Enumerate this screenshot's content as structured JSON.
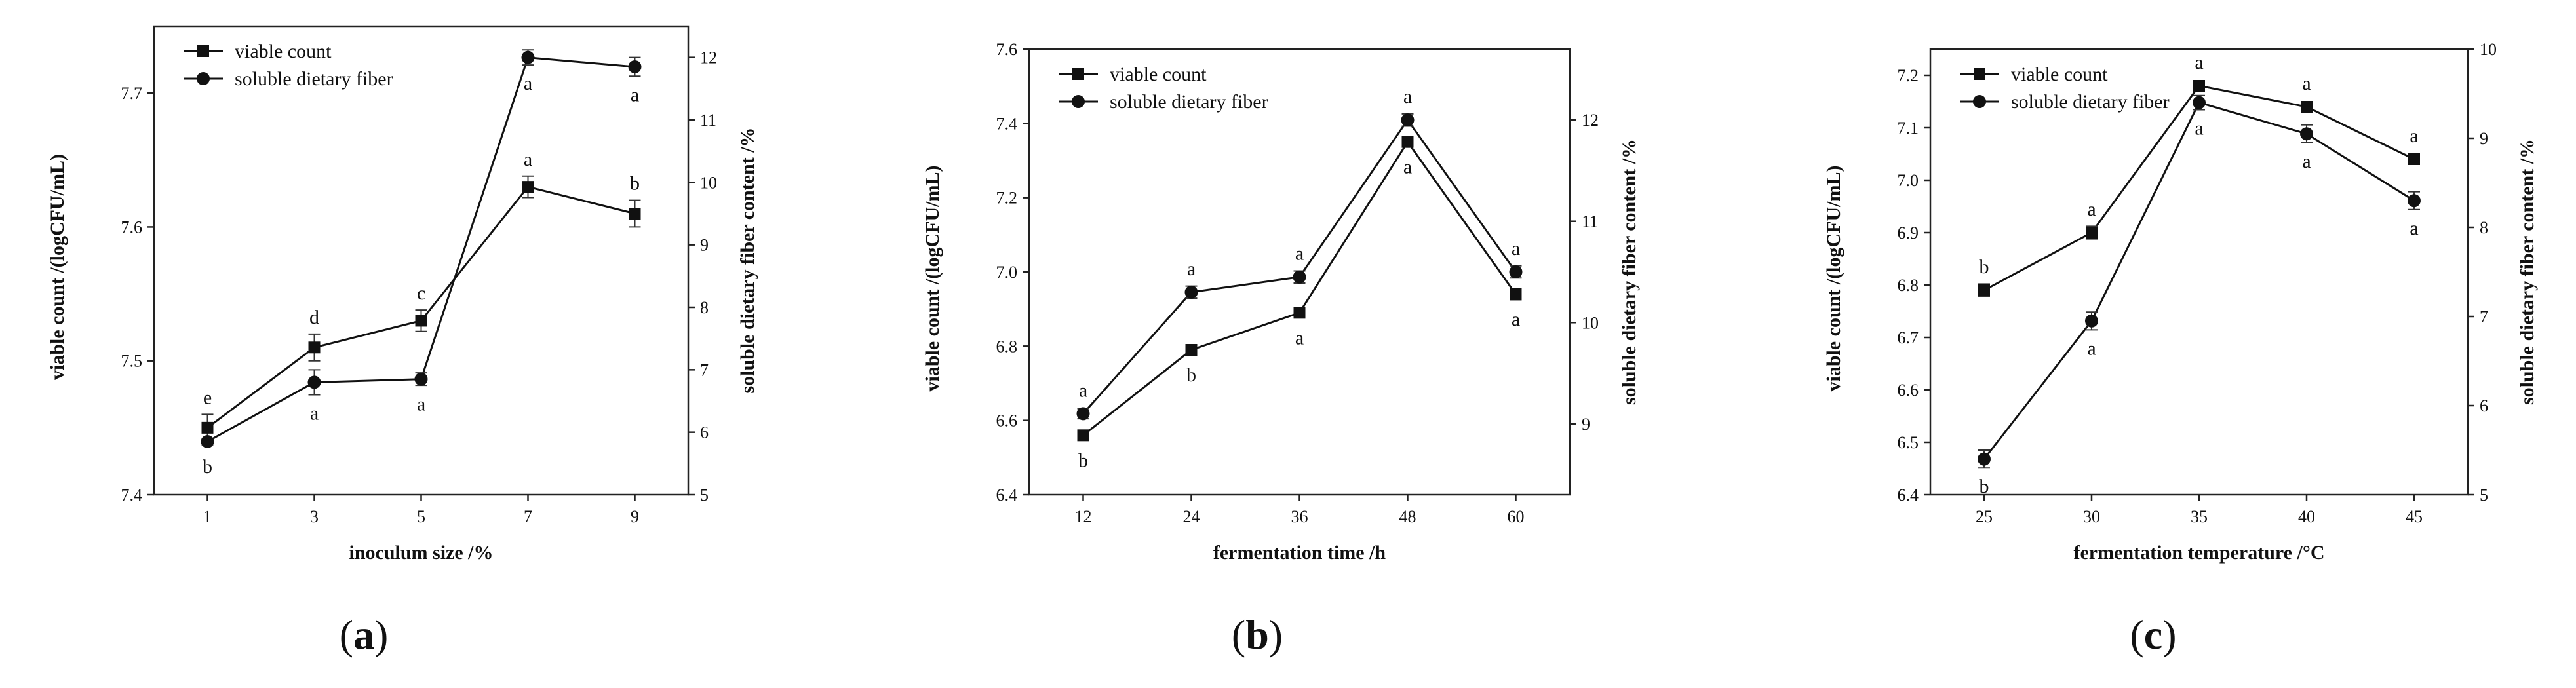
{
  "chart_data": [
    {
      "type": "line",
      "panel_label": "a",
      "xlabel": "inoculum size /%",
      "ylabel_left": "viable count /(logCFU/mL)",
      "ylabel_right": "soluble dietary fiber content /%",
      "x": [
        1,
        3,
        5,
        7,
        9
      ],
      "xlim": [
        0,
        10
      ],
      "ylim_left": [
        7.4,
        7.75
      ],
      "yticks_left": [
        7.4,
        7.5,
        7.6,
        7.7
      ],
      "ylim_right": [
        5,
        12.5
      ],
      "yticks_right": [
        5,
        6,
        7,
        8,
        9,
        10,
        11,
        12
      ],
      "legend_position": "top-left",
      "series": [
        {
          "name": "viable count",
          "axis": "left",
          "marker": "square",
          "values": [
            7.45,
            7.51,
            7.53,
            7.63,
            7.61
          ],
          "errors": [
            0.01,
            0.01,
            0.008,
            0.008,
            0.01
          ],
          "letters": [
            "e",
            "d",
            "c",
            "a",
            "b"
          ],
          "letter_side": [
            "above",
            "above",
            "above",
            "above",
            "above"
          ]
        },
        {
          "name": "soluble dietary fiber",
          "axis": "right",
          "marker": "circle",
          "values": [
            5.85,
            6.8,
            6.85,
            12.0,
            11.85
          ],
          "errors": [
            0.05,
            0.2,
            0.1,
            0.12,
            0.15
          ],
          "letters": [
            "b",
            "a",
            "a",
            "a",
            "a"
          ],
          "letter_side": [
            "below",
            "below",
            "below",
            "below",
            "below"
          ]
        }
      ]
    },
    {
      "type": "line",
      "panel_label": "b",
      "xlabel": "fermentation time /h",
      "ylabel_left": "viable count /(logCFU/mL)",
      "ylabel_right": "soluble dietary fiber content /%",
      "x": [
        12,
        24,
        36,
        48,
        60
      ],
      "xlim": [
        6,
        66
      ],
      "ylim_left": [
        6.4,
        7.6
      ],
      "yticks_left": [
        6.4,
        6.6,
        6.8,
        7.0,
        7.2,
        7.4,
        7.6
      ],
      "ylim_right": [
        8.3,
        12.7
      ],
      "yticks_right": [
        9,
        10,
        11,
        12
      ],
      "legend_position": "top-left",
      "series": [
        {
          "name": "viable count",
          "axis": "left",
          "marker": "square",
          "values": [
            6.56,
            6.79,
            6.89,
            7.35,
            6.94
          ],
          "errors": [
            0.012,
            0.012,
            0.012,
            0.012,
            0.015
          ],
          "letters": [
            "b",
            "b",
            "a",
            "a",
            "a"
          ],
          "letter_side": [
            "below",
            "below",
            "below",
            "below",
            "below"
          ]
        },
        {
          "name": "soluble dietary fiber",
          "axis": "right",
          "marker": "circle",
          "values": [
            9.1,
            10.3,
            10.45,
            12.0,
            10.5
          ],
          "errors": [
            0.05,
            0.06,
            0.06,
            0.06,
            0.06
          ],
          "letters": [
            "a",
            "a",
            "a",
            "a",
            "a"
          ],
          "letter_side": [
            "above",
            "above",
            "above",
            "above",
            "above"
          ]
        }
      ]
    },
    {
      "type": "line",
      "panel_label": "c",
      "xlabel": "fermentation temperature /°C",
      "ylabel_left": "viable count /(logCFU/mL)",
      "ylabel_right": "soluble dietary fiber content /%",
      "x": [
        25,
        30,
        35,
        40,
        45
      ],
      "xlim": [
        22.5,
        47.5
      ],
      "ylim_left": [
        6.4,
        7.25
      ],
      "yticks_left": [
        6.4,
        6.5,
        6.6,
        6.7,
        6.8,
        6.9,
        7.0,
        7.1,
        7.2
      ],
      "ylim_right": [
        5,
        10
      ],
      "yticks_right": [
        5,
        6,
        7,
        8,
        9,
        10
      ],
      "legend_position": "top-left",
      "series": [
        {
          "name": "viable count",
          "axis": "left",
          "marker": "square",
          "values": [
            6.79,
            6.9,
            7.18,
            7.14,
            7.04
          ],
          "errors": [
            0.012,
            0.012,
            0.01,
            0.01,
            0.01
          ],
          "letters": [
            "b",
            "a",
            "a",
            "a",
            "a"
          ],
          "letter_side": [
            "above",
            "above",
            "above",
            "above",
            "above"
          ]
        },
        {
          "name": "soluble dietary fiber",
          "axis": "right",
          "marker": "circle",
          "values": [
            5.4,
            6.95,
            9.4,
            9.05,
            8.3
          ],
          "errors": [
            0.1,
            0.1,
            0.08,
            0.1,
            0.1
          ],
          "letters": [
            "b",
            "a",
            "a",
            "a",
            "a"
          ],
          "letter_side": [
            "below",
            "below",
            "below",
            "below",
            "below"
          ]
        }
      ]
    }
  ]
}
